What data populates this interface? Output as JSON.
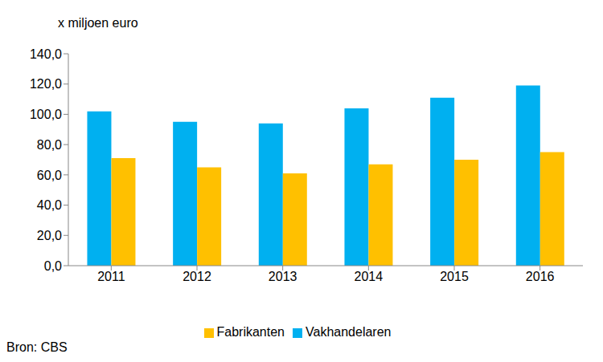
{
  "chart_data": {
    "type": "bar",
    "y_label": "x miljoen euro",
    "annotation": "Bron: CBS",
    "categories": [
      "2011",
      "2012",
      "2013",
      "2014",
      "2015",
      "2016"
    ],
    "series": [
      {
        "name": "Vakhandelaren",
        "color": "#00B0F0",
        "values": [
          102,
          95,
          94,
          104,
          111,
          119
        ]
      },
      {
        "name": "Fabrikanten",
        "color": "#FFC000",
        "values": [
          71,
          65,
          61,
          67,
          70,
          75
        ]
      }
    ],
    "ylim": [
      0,
      140
    ],
    "yticks": [
      {
        "value": 0,
        "label": "0,0"
      },
      {
        "value": 20,
        "label": "20,0"
      },
      {
        "value": 40,
        "label": "40,0"
      },
      {
        "value": 60,
        "label": "60,0"
      },
      {
        "value": 80,
        "label": "80,0"
      },
      {
        "value": 100,
        "label": "100,0"
      },
      {
        "value": 120,
        "label": "120,0"
      },
      {
        "value": 140,
        "label": "140,0"
      }
    ],
    "grid": false,
    "legend": "bottom"
  }
}
